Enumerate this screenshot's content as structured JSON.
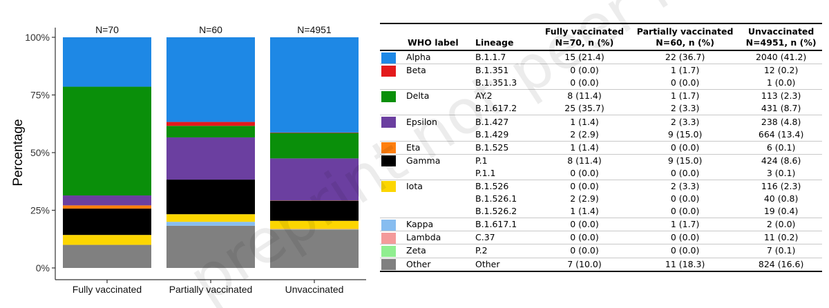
{
  "chart_data": {
    "type": "bar",
    "stacked": true,
    "ylabel": "Percentage",
    "xlabel": "",
    "ylim": [
      0,
      100
    ],
    "yticks": [
      "0%",
      "25%",
      "50%",
      "75%",
      "100%"
    ],
    "categories": [
      "Fully vaccinated",
      "Partially vaccinated",
      "Unvaccinated"
    ],
    "n_labels": [
      "N=70",
      "N=60",
      "N=4951"
    ],
    "series": [
      {
        "name": "Other",
        "color": "#808080",
        "values": [
          10.0,
          18.3,
          16.6
        ]
      },
      {
        "name": "Zeta",
        "color": "#90ee90",
        "values": [
          0.0,
          0.0,
          0.1
        ]
      },
      {
        "name": "Lambda",
        "color": "#f49a9a",
        "values": [
          0.0,
          0.0,
          0.2
        ]
      },
      {
        "name": "Kappa",
        "color": "#87bdf0",
        "values": [
          0.0,
          1.7,
          0.0
        ]
      },
      {
        "name": "Iota",
        "color": "#fcd600",
        "values": [
          4.3,
          3.3,
          3.5
        ]
      },
      {
        "name": "Gamma",
        "color": "#000000",
        "values": [
          11.4,
          15.0,
          8.7
        ]
      },
      {
        "name": "Eta",
        "color": "#ff7f0e",
        "values": [
          1.4,
          0.0,
          0.1
        ]
      },
      {
        "name": "Epsilon",
        "color": "#6b3fa0",
        "values": [
          4.3,
          18.3,
          18.2
        ]
      },
      {
        "name": "Delta",
        "color": "#0a8f0a",
        "values": [
          47.1,
          5.0,
          11.0
        ]
      },
      {
        "name": "Beta",
        "color": "#e31a1c",
        "values": [
          0.0,
          1.7,
          0.2
        ]
      },
      {
        "name": "Alpha",
        "color": "#1e88e5",
        "values": [
          21.4,
          36.7,
          41.2
        ]
      }
    ]
  },
  "table": {
    "headers": [
      "WHO label",
      "Lineage",
      "Fully vaccinated\nN=70, n (%)",
      "Partially vaccinated\nN=60, n (%)",
      "Unvaccinated\nN=4951, n (%)"
    ],
    "groups": [
      {
        "label": "Alpha",
        "color": "#1e88e5",
        "rows": [
          [
            "B.1.1.7",
            "15 (21.4)",
            "22 (36.7)",
            "2040 (41.2)"
          ]
        ]
      },
      {
        "label": "Beta",
        "color": "#e31a1c",
        "rows": [
          [
            "B.1.351",
            "0 (0.0)",
            "1 (1.7)",
            "12 (0.2)"
          ],
          [
            "B.1.351.3",
            "0 (0.0)",
            "0 (0.0)",
            "1 (0.0)"
          ]
        ]
      },
      {
        "label": "Delta",
        "color": "#0a8f0a",
        "rows": [
          [
            "AY.2",
            "8 (11.4)",
            "1 (1.7)",
            "113 (2.3)"
          ],
          [
            "B.1.617.2",
            "25 (35.7)",
            "2 (3.3)",
            "431 (8.7)"
          ]
        ]
      },
      {
        "label": "Epsilon",
        "color": "#6b3fa0",
        "rows": [
          [
            "B.1.427",
            "1 (1.4)",
            "2 (3.3)",
            "238 (4.8)"
          ],
          [
            "B.1.429",
            "2 (2.9)",
            "9 (15.0)",
            "664 (13.4)"
          ]
        ]
      },
      {
        "label": "Eta",
        "color": "#ff7f0e",
        "rows": [
          [
            "B.1.525",
            "1 (1.4)",
            "0 (0.0)",
            "6 (0.1)"
          ]
        ]
      },
      {
        "label": "Gamma",
        "color": "#000000",
        "rows": [
          [
            "P.1",
            "8 (11.4)",
            "9 (15.0)",
            "424 (8.6)"
          ],
          [
            "P.1.1",
            "0 (0.0)",
            "0 (0.0)",
            "3 (0.1)"
          ]
        ]
      },
      {
        "label": "Iota",
        "color": "#fcd600",
        "rows": [
          [
            "B.1.526",
            "0 (0.0)",
            "2 (3.3)",
            "116 (2.3)"
          ],
          [
            "B.1.526.1",
            "2 (2.9)",
            "0 (0.0)",
            "40 (0.8)"
          ],
          [
            "B.1.526.2",
            "1 (1.4)",
            "0 (0.0)",
            "19 (0.4)"
          ]
        ]
      },
      {
        "label": "Kappa",
        "color": "#87bdf0",
        "rows": [
          [
            "B.1.617.1",
            "0 (0.0)",
            "1 (1.7)",
            "2 (0.0)"
          ]
        ]
      },
      {
        "label": "Lambda",
        "color": "#f49a9a",
        "rows": [
          [
            "C.37",
            "0 (0.0)",
            "0 (0.0)",
            "11 (0.2)"
          ]
        ]
      },
      {
        "label": "Zeta",
        "color": "#90ee90",
        "rows": [
          [
            "P.2",
            "0 (0.0)",
            "0 (0.0)",
            "7 (0.1)"
          ]
        ]
      },
      {
        "label": "Other",
        "color": "#808080",
        "rows": [
          [
            "Other",
            "7 (10.0)",
            "11 (18.3)",
            "824 (16.6)"
          ]
        ]
      }
    ]
  },
  "watermark": {
    "text": "preprint not peer reviewed"
  }
}
